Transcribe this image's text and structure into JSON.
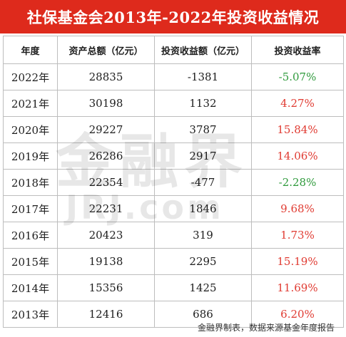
{
  "title": "社保基金会2013年-2022年投资收益情况",
  "headers": [
    "年度",
    "资产总额（亿元）",
    "投资收益额（亿元）",
    "投资收益率"
  ],
  "rows": [
    {
      "year": "2022年",
      "assets": "28835",
      "income": "-1381",
      "rate": "-5.07%",
      "trend": "neg"
    },
    {
      "year": "2021年",
      "assets": "30198",
      "income": "1132",
      "rate": "4.27%",
      "trend": "pos"
    },
    {
      "year": "2020年",
      "assets": "29227",
      "income": "3787",
      "rate": "15.84%",
      "trend": "pos"
    },
    {
      "year": "2019年",
      "assets": "26286",
      "income": "2917",
      "rate": "14.06%",
      "trend": "pos"
    },
    {
      "year": "2018年",
      "assets": "22354",
      "income": "-477",
      "rate": "-2.28%",
      "trend": "neg"
    },
    {
      "year": "2017年",
      "assets": "22231",
      "income": "1846",
      "rate": "9.68%",
      "trend": "pos"
    },
    {
      "year": "2016年",
      "assets": "20423",
      "income": "319",
      "rate": "1.73%",
      "trend": "pos"
    },
    {
      "year": "2015年",
      "assets": "19138",
      "income": "2295",
      "rate": "15.19%",
      "trend": "pos"
    },
    {
      "year": "2014年",
      "assets": "15356",
      "income": "1425",
      "rate": "11.69%",
      "trend": "pos"
    },
    {
      "year": "2013年",
      "assets": "12416",
      "income": "686",
      "rate": "6.20%",
      "trend": "pos"
    }
  ],
  "watermark": {
    "line1": "金融界",
    "line2": "JRJ.com"
  },
  "footer": "金融界制表，数据来源基金年度报告",
  "colors": {
    "title_bg": "#de2a1c",
    "positive": "#e03b32",
    "negative": "#2f9a3c"
  },
  "chart_data": {
    "type": "table",
    "title": "社保基金会2013年-2022年投资收益情况",
    "columns": [
      "年度",
      "资产总额（亿元）",
      "投资收益额（亿元）",
      "投资收益率"
    ],
    "rows": [
      [
        "2022年",
        28835,
        -1381,
        "-5.07%"
      ],
      [
        "2021年",
        30198,
        1132,
        "4.27%"
      ],
      [
        "2020年",
        29227,
        3787,
        "15.84%"
      ],
      [
        "2019年",
        26286,
        2917,
        "14.06%"
      ],
      [
        "2018年",
        22354,
        -477,
        "-2.28%"
      ],
      [
        "2017年",
        22231,
        1846,
        "9.68%"
      ],
      [
        "2016年",
        20423,
        319,
        "1.73%"
      ],
      [
        "2015年",
        19138,
        2295,
        "15.19%"
      ],
      [
        "2014年",
        15356,
        1425,
        "11.69%"
      ],
      [
        "2013年",
        12416,
        686,
        "6.20%"
      ]
    ]
  }
}
